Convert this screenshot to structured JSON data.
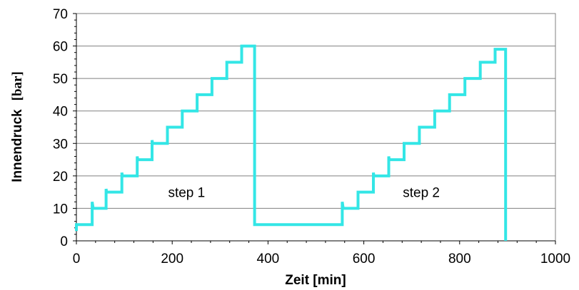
{
  "chart_data": {
    "type": "line",
    "title": "",
    "xlabel": "Zeit [min]",
    "ylabel": "Innendruck",
    "ylabel_unit": "[bar]",
    "xlim": [
      0,
      1000
    ],
    "ylim": [
      0,
      70
    ],
    "x_ticks": [
      "0",
      "200",
      "400",
      "600",
      "800",
      "1000"
    ],
    "y_ticks": [
      "0",
      "10",
      "20",
      "30",
      "40",
      "50",
      "60",
      "70"
    ],
    "grid": "horizontal",
    "line_color": "#33e6e6",
    "annotations": [
      {
        "text": "step 1",
        "x": 230,
        "y": 15
      },
      {
        "text": "step 2",
        "x": 720,
        "y": 15
      }
    ],
    "series": [
      {
        "x": [
          0,
          0,
          33,
          33,
          35,
          62,
          62,
          63,
          95,
          95,
          96,
          127,
          127,
          128,
          158,
          158,
          159,
          190,
          190,
          221,
          221,
          252,
          252,
          283,
          283,
          314,
          314,
          345,
          345,
          372,
          372,
          555,
          555,
          557,
          588,
          588,
          620,
          620,
          621,
          652,
          652,
          653,
          684,
          684,
          685,
          716,
          716,
          748,
          748,
          779,
          779,
          811,
          811,
          843,
          843,
          874,
          874,
          896,
          896
        ],
        "y": [
          3,
          5,
          5,
          12,
          10,
          10,
          16,
          15,
          15,
          21,
          20,
          20,
          26,
          25,
          25,
          31,
          30,
          30,
          35,
          35,
          40,
          40,
          45,
          45,
          50,
          50,
          55,
          55,
          60,
          60,
          5,
          5,
          12,
          10,
          10,
          15,
          15,
          21,
          20,
          20,
          26,
          25,
          25,
          30,
          30,
          30,
          35,
          35,
          40,
          40,
          45,
          45,
          50,
          50,
          55,
          55,
          59,
          59,
          0
        ]
      }
    ]
  }
}
